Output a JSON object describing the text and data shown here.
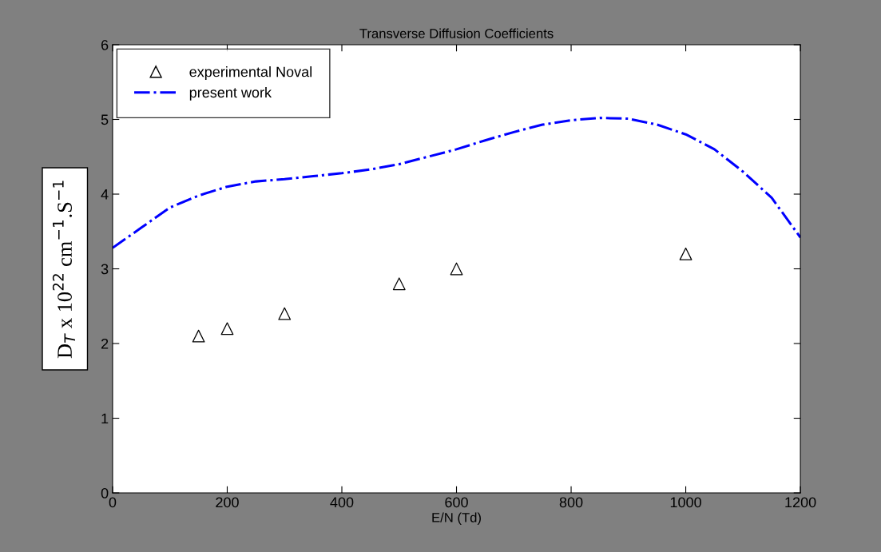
{
  "chart_data": {
    "type": "line",
    "title": "Transverse Diffusion Coefficients",
    "xlabel": "E/N (Td)",
    "ylabel": "D$_{T}$ x 10$^{22}$ cm$^{−1}$.S$^{−1}$",
    "xlim": [
      0,
      1200
    ],
    "xticks": [
      0,
      200,
      400,
      600,
      800,
      1000,
      1200
    ],
    "ylim": [
      0,
      6
    ],
    "yticks": [
      0,
      1,
      2,
      3,
      4,
      5,
      6
    ],
    "grid": false,
    "legend": "top left",
    "series": [
      {
        "name": "experimental Noval",
        "type": "scatter",
        "marker": "triangle",
        "color": "#000000",
        "x": [
          150,
          200,
          300,
          500,
          600,
          1000
        ],
        "values": [
          2.1,
          2.2,
          2.4,
          2.8,
          3.0,
          3.2
        ]
      },
      {
        "name": "present work",
        "line_style": "dashdot",
        "color": "#0000ff",
        "x": [
          0,
          50,
          100,
          150,
          200,
          250,
          300,
          350,
          400,
          450,
          500,
          550,
          600,
          650,
          700,
          750,
          800,
          850,
          900,
          950,
          1000,
          1050,
          1100,
          1150,
          1200
        ],
        "values": [
          3.28,
          3.55,
          3.82,
          3.98,
          4.1,
          4.17,
          4.2,
          4.24,
          4.28,
          4.33,
          4.4,
          4.5,
          4.6,
          4.72,
          4.83,
          4.93,
          4.99,
          5.02,
          5.01,
          4.93,
          4.8,
          4.6,
          4.3,
          3.95,
          3.42
        ]
      }
    ]
  }
}
